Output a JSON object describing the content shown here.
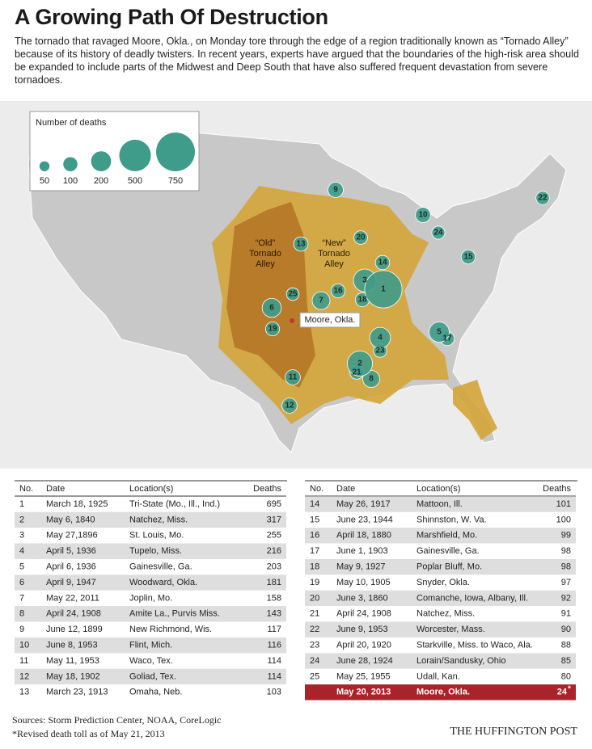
{
  "header": {
    "title": "A Growing Path Of Destruction",
    "intro": "The tornado that ravaged Moore, Okla., on Monday tore through the edge of a region traditionally known as “Tornado Alley” because of its history of deadly twisters. In recent years, experts have argued that the boundaries of the high-risk area should be expanded to include parts of the Midwest and Deep South that have also suffered frequent devastation from severe tornadoes."
  },
  "legend": {
    "title": "Number of deaths",
    "sizes": [
      50,
      100,
      200,
      500,
      750
    ]
  },
  "map": {
    "old_alley": [
      "“Old”",
      "Tornado",
      "Alley"
    ],
    "new_alley": [
      "“New”",
      "Tornado",
      "Alley"
    ],
    "moore_label": "Moore, Okla."
  },
  "table": {
    "columns": [
      "No.",
      "Date",
      "Location(s)",
      "Deaths"
    ],
    "rows": [
      [
        1,
        "March 18, 1925",
        "Tri-State (Mo., Ill., Ind.)",
        695
      ],
      [
        2,
        "May 6, 1840",
        "Natchez, Miss.",
        317
      ],
      [
        3,
        "May 27,1896",
        "St. Louis, Mo.",
        255
      ],
      [
        4,
        "April 5, 1936",
        "Tupelo, Miss.",
        216
      ],
      [
        5,
        "April 6, 1936",
        "Gainesville, Ga.",
        203
      ],
      [
        6,
        "April 9, 1947",
        "Woodward, Okla.",
        181
      ],
      [
        7,
        "May 22, 2011",
        "Joplin, Mo.",
        158
      ],
      [
        8,
        "April 24, 1908",
        "Amite La., Purvis Miss.",
        143
      ],
      [
        9,
        "June 12, 1899",
        "New Richmond, Wis.",
        117
      ],
      [
        10,
        "June 8, 1953",
        "Flint, Mich.",
        116
      ],
      [
        11,
        "May 11, 1953",
        "Waco, Tex.",
        114
      ],
      [
        12,
        "May 18, 1902",
        "Goliad, Tex.",
        114
      ],
      [
        13,
        "March 23, 1913",
        "Omaha, Neb.",
        103
      ],
      [
        14,
        "May 26, 1917",
        "Mattoon, Ill.",
        101
      ],
      [
        15,
        "June 23, 1944",
        "Shinnston, W. Va.",
        100
      ],
      [
        16,
        "April 18, 1880",
        "Marshfield, Mo.",
        99
      ],
      [
        17,
        "June 1, 1903",
        "Gainesville, Ga.",
        98
      ],
      [
        18,
        "May 9, 1927",
        "Poplar Bluff, Mo.",
        98
      ],
      [
        19,
        "May 10, 1905",
        "Snyder, Okla.",
        97
      ],
      [
        20,
        "June 3, 1860",
        "Comanche, Iowa, Albany, Ill.",
        92
      ],
      [
        21,
        "April 24, 1908",
        "Natchez, Miss.",
        91
      ],
      [
        22,
        "June 9, 1953",
        "Worcester, Mass.",
        90
      ],
      [
        23,
        "April 20, 1920",
        "Starkville, Miss. to Waco, Ala.",
        88
      ],
      [
        24,
        "June 28, 1924",
        "Lorain/Sandusky, Ohio",
        85
      ],
      [
        25,
        "May 25, 1955",
        "Udall, Kan.",
        80
      ]
    ],
    "highlight": {
      "date": "May 20, 2013",
      "location": "Moore, Okla.",
      "deaths": 24,
      "mark": "*"
    }
  },
  "footer": {
    "sources": "Sources: Storm Prediction Center, NOAA, CoreLogic",
    "note": "*Revised death toll as of May 21, 2013",
    "brand": "THE HUFFINGTON POST"
  }
}
